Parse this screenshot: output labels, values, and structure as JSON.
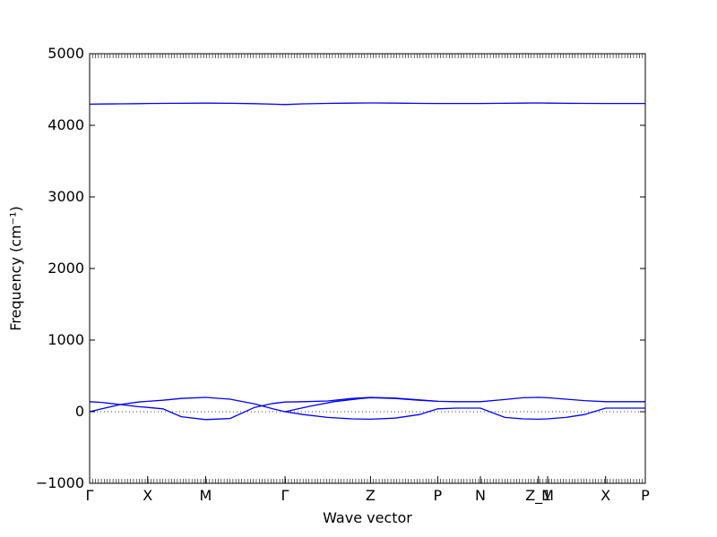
{
  "chart_data": {
    "type": "line",
    "xlabel": "Wave vector",
    "ylabel": "Frequency (cm⁻¹)",
    "ylim": [
      -1000,
      5000
    ],
    "yticks": [
      -1000,
      0,
      1000,
      2000,
      3000,
      4000,
      5000
    ],
    "xlim": [
      0,
      9.1
    ],
    "high_symmetry_points": [
      {
        "label": "Γ",
        "x": 0.0
      },
      {
        "label": "X",
        "x": 0.95
      },
      {
        "label": "M",
        "x": 1.9
      },
      {
        "label": "Γ",
        "x": 3.2
      },
      {
        "label": "Z",
        "x": 4.6
      },
      {
        "label": "P",
        "x": 5.7
      },
      {
        "label": "N",
        "x": 6.4
      },
      {
        "label": "Z_1",
        "x": 7.35
      },
      {
        "label": "M",
        "x": 7.5
      },
      {
        "label": "X",
        "x": 8.45
      },
      {
        "label": "P",
        "x": 9.1
      }
    ],
    "zero_line": 0,
    "color": "#0000ff",
    "series": [
      {
        "x": [
          0,
          0.2,
          0.5,
          0.8,
          0.95,
          1.2,
          1.5,
          1.9,
          2.3,
          2.7,
          3.0,
          3.2,
          3.5,
          3.9,
          4.3,
          4.6,
          5.0,
          5.4,
          5.7,
          6.0,
          6.4,
          6.8,
          7.1,
          7.35,
          7.5,
          7.8,
          8.1,
          8.45,
          8.8,
          9.1
        ],
        "y": [
          4295,
          4297,
          4300,
          4303,
          4305,
          4306,
          4308,
          4310,
          4308,
          4302,
          4295,
          4290,
          4300,
          4306,
          4310,
          4312,
          4310,
          4306,
          4305,
          4305,
          4305,
          4308,
          4310,
          4312,
          4310,
          4308,
          4306,
          4305,
          4305,
          4305
        ]
      },
      {
        "x": [
          0,
          0.2,
          0.5,
          0.8,
          0.95,
          1.2,
          1.5,
          1.9,
          2.3,
          2.7,
          3.0,
          3.2,
          3.5,
          3.9,
          4.3,
          4.6,
          5.0,
          5.4,
          5.7,
          6.0,
          6.4,
          6.8,
          7.1,
          7.35,
          7.5,
          7.8,
          8.1,
          8.45,
          8.8,
          9.1
        ],
        "y": [
          140,
          130,
          100,
          70,
          60,
          40,
          -70,
          -110,
          -95,
          60,
          115,
          135,
          140,
          150,
          185,
          200,
          190,
          165,
          145,
          140,
          140,
          170,
          195,
          200,
          195,
          175,
          155,
          140,
          140,
          140
        ]
      },
      {
        "x": [
          0,
          0.2,
          0.5,
          0.8,
          0.95,
          1.2,
          1.5,
          1.9,
          2.3,
          2.7,
          3.0,
          3.2,
          3.5,
          3.9,
          4.3,
          4.6,
          5.0,
          5.4,
          5.7,
          6.0,
          6.4,
          6.8,
          7.1,
          7.35,
          7.5,
          7.8,
          8.1,
          8.45,
          8.8,
          9.1
        ],
        "y": [
          0,
          40,
          100,
          135,
          145,
          160,
          185,
          200,
          175,
          110,
          40,
          0,
          -40,
          -80,
          -100,
          -105,
          -90,
          -40,
          40,
          50,
          50,
          -80,
          -100,
          -105,
          -100,
          -80,
          -40,
          50,
          50,
          50
        ]
      },
      {
        "x": [
          3.2,
          3.6,
          4.0,
          4.4,
          4.6,
          5.0,
          5.4,
          5.7
        ],
        "y": [
          0,
          75,
          140,
          180,
          195,
          185,
          160,
          145
        ]
      }
    ]
  }
}
